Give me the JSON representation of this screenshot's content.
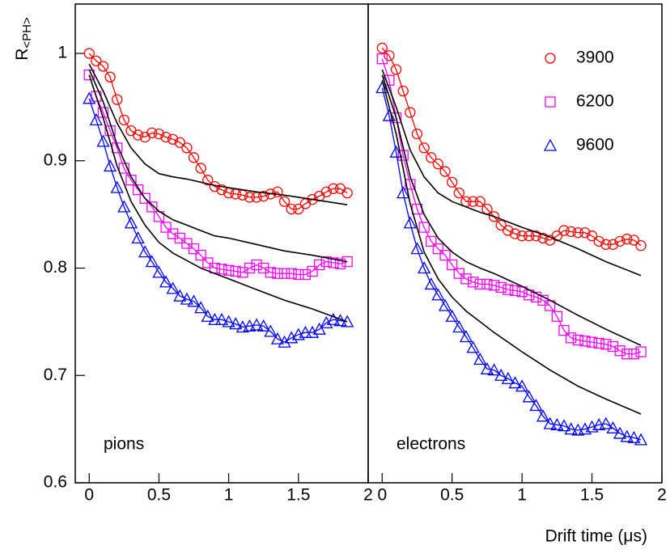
{
  "chart_data": [
    {
      "type": "line",
      "annotation": "pions",
      "y_label": "R",
      "y_label_sub": "<PH>",
      "xlim": [
        -0.1,
        2.0
      ],
      "ylim": [
        0.6,
        1.046
      ],
      "xticks": [
        0,
        0.5,
        1,
        1.5,
        2
      ],
      "yticks": [
        0.6,
        0.7,
        0.8,
        0.9,
        1
      ],
      "x": [
        0,
        0.05,
        0.1,
        0.15,
        0.2,
        0.25,
        0.3,
        0.35,
        0.4,
        0.45,
        0.5,
        0.55,
        0.6,
        0.65,
        0.7,
        0.75,
        0.8,
        0.85,
        0.9,
        0.95,
        1.0,
        1.05,
        1.1,
        1.15,
        1.2,
        1.25,
        1.3,
        1.35,
        1.4,
        1.45,
        1.5,
        1.55,
        1.6,
        1.65,
        1.7,
        1.75,
        1.8,
        1.85
      ],
      "series": [
        {
          "color": "#ff0000",
          "marker": "circle",
          "values": [
            1.0,
            0.993,
            0.988,
            0.978,
            0.957,
            0.938,
            0.928,
            0.924,
            0.922,
            0.926,
            0.925,
            0.922,
            0.92,
            0.917,
            0.912,
            0.903,
            0.893,
            0.882,
            0.876,
            0.873,
            0.87,
            0.869,
            0.868,
            0.866,
            0.866,
            0.867,
            0.869,
            0.871,
            0.862,
            0.855,
            0.855,
            0.86,
            0.864,
            0.867,
            0.871,
            0.874,
            0.874,
            0.87
          ]
        },
        {
          "color": "#ff00ff",
          "marker": "square",
          "values": [
            0.98,
            0.96,
            0.945,
            0.928,
            0.912,
            0.893,
            0.882,
            0.873,
            0.865,
            0.857,
            0.848,
            0.838,
            0.832,
            0.828,
            0.823,
            0.818,
            0.812,
            0.805,
            0.8,
            0.799,
            0.798,
            0.797,
            0.796,
            0.8,
            0.803,
            0.8,
            0.796,
            0.795,
            0.795,
            0.795,
            0.794,
            0.794,
            0.797,
            0.803,
            0.806,
            0.805,
            0.804,
            0.806
          ]
        },
        {
          "color": "#0000ff",
          "marker": "triangle",
          "values": [
            0.958,
            0.938,
            0.918,
            0.895,
            0.875,
            0.857,
            0.842,
            0.828,
            0.815,
            0.806,
            0.796,
            0.787,
            0.781,
            0.774,
            0.771,
            0.769,
            0.763,
            0.755,
            0.752,
            0.752,
            0.75,
            0.748,
            0.745,
            0.746,
            0.747,
            0.746,
            0.741,
            0.734,
            0.731,
            0.735,
            0.738,
            0.74,
            0.74,
            0.743,
            0.749,
            0.752,
            0.751,
            0.75
          ]
        },
        {
          "color": "#000000",
          "x": [
            0,
            0.1,
            0.2,
            0.3,
            0.4,
            0.5,
            0.6,
            0.7,
            0.8,
            0.9,
            1.0,
            1.2,
            1.4,
            1.6,
            1.85
          ],
          "values": [
            0.99,
            0.965,
            0.935,
            0.912,
            0.897,
            0.888,
            0.885,
            0.883,
            0.88,
            0.877,
            0.875,
            0.871,
            0.868,
            0.864,
            0.859
          ]
        },
        {
          "color": "#000000",
          "x": [
            0,
            0.1,
            0.2,
            0.3,
            0.4,
            0.5,
            0.6,
            0.7,
            0.8,
            0.9,
            1.0,
            1.2,
            1.4,
            1.6,
            1.85
          ],
          "values": [
            0.985,
            0.955,
            0.915,
            0.885,
            0.865,
            0.853,
            0.845,
            0.84,
            0.835,
            0.83,
            0.828,
            0.822,
            0.816,
            0.812,
            0.806
          ]
        },
        {
          "color": "#000000",
          "x": [
            0,
            0.1,
            0.2,
            0.3,
            0.4,
            0.5,
            0.6,
            0.7,
            0.8,
            0.9,
            1.0,
            1.2,
            1.4,
            1.6,
            1.85
          ],
          "values": [
            0.98,
            0.94,
            0.895,
            0.862,
            0.84,
            0.824,
            0.814,
            0.807,
            0.8,
            0.795,
            0.79,
            0.78,
            0.77,
            0.762,
            0.75
          ]
        }
      ]
    },
    {
      "type": "line",
      "annotation": "electrons",
      "x_label": "Drift time (μs)",
      "xlim": [
        -0.1,
        2.0
      ],
      "ylim": [
        0.6,
        1.046
      ],
      "xticks": [
        0,
        0.5,
        1,
        1.5,
        2
      ],
      "x": [
        0,
        0.05,
        0.1,
        0.15,
        0.2,
        0.25,
        0.3,
        0.35,
        0.4,
        0.45,
        0.5,
        0.55,
        0.6,
        0.65,
        0.7,
        0.75,
        0.8,
        0.85,
        0.9,
        0.95,
        1.0,
        1.05,
        1.1,
        1.15,
        1.2,
        1.25,
        1.3,
        1.35,
        1.4,
        1.45,
        1.5,
        1.55,
        1.6,
        1.65,
        1.7,
        1.75,
        1.8,
        1.85
      ],
      "series": [
        {
          "name": "3900",
          "color": "#ff0000",
          "marker": "circle",
          "values": [
            1.005,
            0.998,
            0.985,
            0.965,
            0.945,
            0.925,
            0.912,
            0.903,
            0.897,
            0.89,
            0.88,
            0.87,
            0.862,
            0.862,
            0.862,
            0.855,
            0.848,
            0.84,
            0.835,
            0.832,
            0.83,
            0.83,
            0.83,
            0.828,
            0.826,
            0.83,
            0.835,
            0.834,
            0.833,
            0.833,
            0.83,
            0.825,
            0.822,
            0.822,
            0.825,
            0.827,
            0.826,
            0.821
          ]
        },
        {
          "name": "6200",
          "color": "#ff00ff",
          "marker": "square",
          "values": [
            0.995,
            0.975,
            0.94,
            0.905,
            0.878,
            0.855,
            0.838,
            0.825,
            0.818,
            0.812,
            0.803,
            0.795,
            0.79,
            0.787,
            0.785,
            0.785,
            0.784,
            0.782,
            0.78,
            0.779,
            0.778,
            0.775,
            0.773,
            0.77,
            0.765,
            0.755,
            0.742,
            0.735,
            0.733,
            0.732,
            0.731,
            0.73,
            0.729,
            0.727,
            0.723,
            0.72,
            0.72,
            0.722
          ]
        },
        {
          "name": "9600",
          "color": "#0000ff",
          "marker": "triangle",
          "values": [
            0.968,
            0.942,
            0.908,
            0.87,
            0.842,
            0.818,
            0.8,
            0.785,
            0.775,
            0.765,
            0.755,
            0.745,
            0.736,
            0.726,
            0.715,
            0.706,
            0.705,
            0.7,
            0.697,
            0.693,
            0.69,
            0.68,
            0.672,
            0.662,
            0.655,
            0.654,
            0.653,
            0.65,
            0.649,
            0.65,
            0.652,
            0.654,
            0.655,
            0.651,
            0.646,
            0.643,
            0.642,
            0.64
          ]
        },
        {
          "color": "#000000",
          "x": [
            0,
            0.1,
            0.2,
            0.3,
            0.4,
            0.5,
            0.6,
            0.7,
            0.8,
            0.9,
            1.0,
            1.2,
            1.4,
            1.6,
            1.85
          ],
          "values": [
            0.985,
            0.95,
            0.91,
            0.885,
            0.87,
            0.862,
            0.857,
            0.852,
            0.848,
            0.843,
            0.838,
            0.829,
            0.818,
            0.806,
            0.793
          ]
        },
        {
          "color": "#000000",
          "x": [
            0,
            0.1,
            0.2,
            0.3,
            0.4,
            0.5,
            0.6,
            0.7,
            0.8,
            0.9,
            1.0,
            1.2,
            1.4,
            1.6,
            1.85
          ],
          "values": [
            0.98,
            0.94,
            0.885,
            0.85,
            0.828,
            0.815,
            0.806,
            0.8,
            0.795,
            0.789,
            0.783,
            0.77,
            0.756,
            0.743,
            0.728
          ]
        },
        {
          "color": "#000000",
          "x": [
            0,
            0.1,
            0.2,
            0.3,
            0.4,
            0.5,
            0.6,
            0.7,
            0.8,
            0.9,
            1.0,
            1.2,
            1.4,
            1.6,
            1.85
          ],
          "values": [
            0.975,
            0.925,
            0.86,
            0.815,
            0.79,
            0.773,
            0.76,
            0.75,
            0.74,
            0.731,
            0.722,
            0.705,
            0.69,
            0.678,
            0.664
          ]
        }
      ]
    }
  ]
}
